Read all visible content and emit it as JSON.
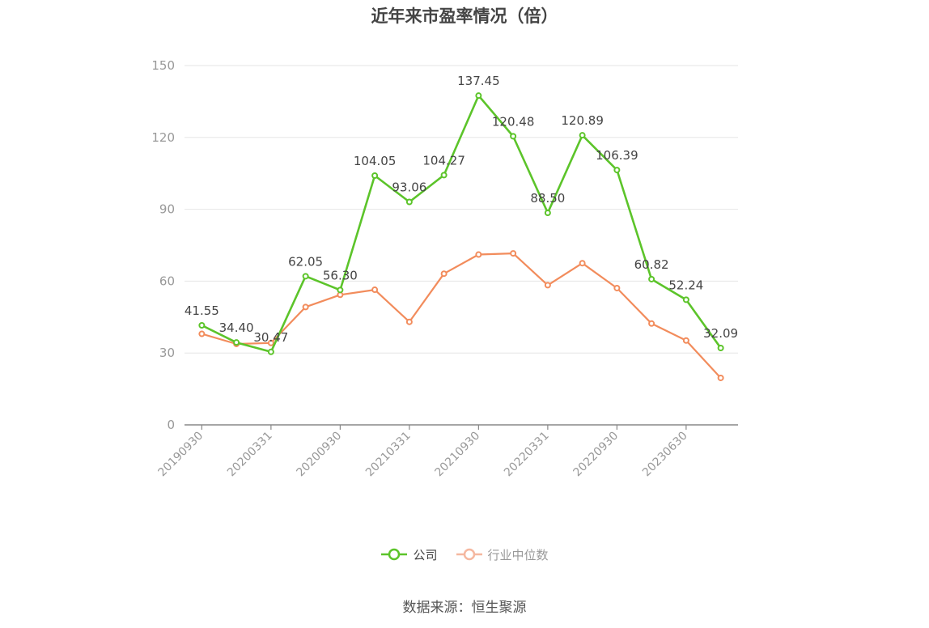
{
  "title": "近年来市盈率情况（倍）",
  "source": "数据来源：恒生聚源",
  "colors": {
    "company": "#5cc42a",
    "industry": "#f28c5c",
    "legend_dim": "#f5b8a0",
    "axis": "#888888",
    "grid": "#e6e6e6",
    "tick_text": "#999999",
    "label_text": "#444444"
  },
  "chart_data": {
    "type": "line",
    "title": "近年来市盈率情况（倍）",
    "ylim": [
      0,
      150
    ],
    "yticks": [
      0,
      30,
      60,
      90,
      120,
      150
    ],
    "grid": true,
    "legend_position": "bottom-center",
    "xtick_labels": [
      "20190930",
      "20200331",
      "20200930",
      "20210331",
      "20210930",
      "20220331",
      "20220930",
      "20230630"
    ],
    "xtick_every": 2,
    "n_points": 16,
    "series": [
      {
        "name": "公司",
        "values": [
          41.55,
          34.4,
          30.47,
          62.05,
          56.3,
          104.05,
          93.06,
          104.27,
          137.45,
          120.48,
          88.5,
          120.89,
          106.39,
          60.82,
          52.24,
          32.09
        ],
        "labels": [
          "41.55",
          "34.40",
          "30.47",
          "62.05",
          "56.30",
          "104.05",
          "93.06",
          "104.27",
          "137.45",
          "120.48",
          "88.50",
          "120.89",
          "106.39",
          "60.82",
          "52.24",
          "32.09"
        ]
      },
      {
        "name": "行业中位数",
        "values": [
          38.0,
          33.8,
          34.2,
          49.2,
          54.3,
          56.4,
          43.0,
          63.1,
          71.1,
          71.6,
          58.3,
          67.5,
          57.1,
          42.3,
          35.2,
          19.6
        ]
      }
    ]
  }
}
